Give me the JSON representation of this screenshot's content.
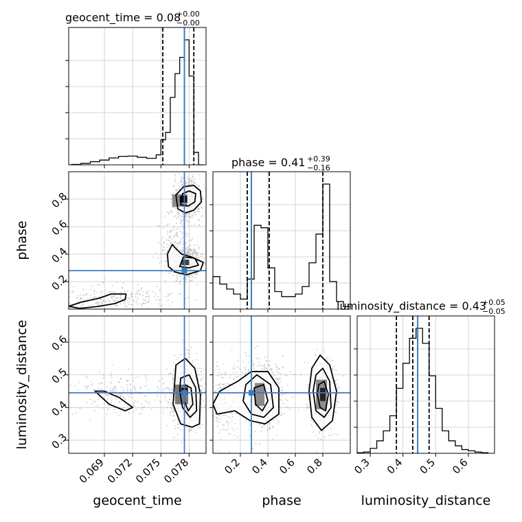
{
  "chart_data": {
    "type": "corner",
    "truth_color": "#3b7dbf",
    "parameters": [
      "geocent_time",
      "phase",
      "luminosity_distance"
    ],
    "titles": [
      {
        "param": "geocent_time",
        "label": "geocent_time = 0.08",
        "plus": "+0.00",
        "minus": "−0.00"
      },
      {
        "param": "phase",
        "label": "phase = 0.41",
        "plus": "+0.39",
        "minus": "−0.16"
      },
      {
        "param": "luminosity_distance",
        "label": "luminosity_distance = 0.43",
        "plus": "+0.05",
        "minus": "−0.05"
      }
    ],
    "axes": {
      "geocent_time": {
        "range": [
          0.0652,
          0.0798
        ],
        "ticks": [
          0.069,
          0.072,
          0.075,
          0.078
        ],
        "tick_labels": [
          "0.069",
          "0.072",
          "0.075",
          "0.078"
        ],
        "truth": 0.0775,
        "quantiles": [
          0.0752,
          0.0775,
          0.0785
        ]
      },
      "phase": {
        "range": [
          0.0,
          1.0
        ],
        "ticks": [
          0.2,
          0.4,
          0.6,
          0.8
        ],
        "tick_labels": [
          "0.2",
          "0.4",
          "0.6",
          "0.8"
        ],
        "truth": 0.28,
        "quantiles": [
          0.25,
          0.41,
          0.8
        ]
      },
      "luminosity_distance": {
        "range": [
          0.26,
          0.68
        ],
        "ticks": [
          0.3,
          0.4,
          0.5,
          0.6
        ],
        "tick_labels": [
          "0.3",
          "0.4",
          "0.5",
          "0.6"
        ],
        "truth": 0.445,
        "quantiles": [
          0.38,
          0.43,
          0.48
        ]
      }
    },
    "histograms": {
      "geocent_time": {
        "bins": [
          0.0655,
          0.0665,
          0.0675,
          0.0685,
          0.0695,
          0.0705,
          0.0715,
          0.0725,
          0.0735,
          0.0745,
          0.075,
          0.0755,
          0.076,
          0.0765,
          0.077,
          0.0775,
          0.078,
          0.0785,
          0.079,
          0.0795
        ],
        "counts": [
          0.3,
          1.2,
          2.5,
          3.8,
          5.5,
          6.8,
          7.0,
          6.0,
          5.2,
          8.0,
          20,
          26,
          54,
          73,
          86,
          100,
          71,
          10,
          0
        ]
      },
      "phase": {
        "bins": [
          0.0,
          0.05,
          0.1,
          0.15,
          0.2,
          0.25,
          0.3,
          0.35,
          0.4,
          0.45,
          0.5,
          0.55,
          0.6,
          0.65,
          0.7,
          0.75,
          0.8,
          0.85,
          0.9,
          0.95,
          1.0
        ],
        "counts": [
          26,
          20,
          16,
          12,
          8,
          24,
          67,
          65,
          33,
          14,
          10,
          10,
          12,
          18,
          37,
          60,
          100,
          22,
          6,
          2
        ]
      },
      "luminosity_distance": {
        "bins": [
          0.26,
          0.28,
          0.3,
          0.32,
          0.34,
          0.36,
          0.38,
          0.4,
          0.42,
          0.44,
          0.46,
          0.48,
          0.5,
          0.52,
          0.54,
          0.56,
          0.58,
          0.6,
          0.62,
          0.64,
          0.66
        ],
        "counts": [
          0.5,
          1.0,
          4.0,
          10,
          18,
          30,
          52,
          72,
          92,
          100,
          88,
          62,
          36,
          18,
          10,
          6,
          3,
          2,
          1,
          0.5
        ]
      }
    },
    "pairs": [
      {
        "x": "geocent_time",
        "y": "phase",
        "scatter_blobs": [
          {
            "cx": 0.0778,
            "cy": 0.8,
            "sx": 0.0007,
            "sy": 0.08,
            "n": 600
          },
          {
            "cx": 0.0778,
            "cy": 0.34,
            "sx": 0.0007,
            "sy": 0.06,
            "n": 500
          },
          {
            "cx": 0.07,
            "cy": 0.08,
            "sx": 0.003,
            "sy": 0.05,
            "n": 250
          },
          {
            "cx": 0.0762,
            "cy": 0.45,
            "sx": 0.0008,
            "sy": 0.12,
            "n": 150
          }
        ],
        "contours": [
          [
            [
              0.0768,
              0.73
            ],
            [
              0.0776,
              0.7
            ],
            [
              0.0785,
              0.72
            ],
            [
              0.0793,
              0.78
            ],
            [
              0.0792,
              0.86
            ],
            [
              0.0785,
              0.9
            ],
            [
              0.0774,
              0.89
            ],
            [
              0.0766,
              0.83
            ]
          ],
          [
            [
              0.0771,
              0.76
            ],
            [
              0.0779,
              0.75
            ],
            [
              0.0786,
              0.78
            ],
            [
              0.0787,
              0.84
            ],
            [
              0.078,
              0.86
            ],
            [
              0.0773,
              0.84
            ]
          ],
          [
            [
              0.0757,
              0.4
            ],
            [
              0.0762,
              0.47
            ],
            [
              0.0766,
              0.44
            ],
            [
              0.0772,
              0.4
            ],
            [
              0.0782,
              0.38
            ],
            [
              0.0795,
              0.34
            ],
            [
              0.0792,
              0.28
            ],
            [
              0.0777,
              0.25
            ],
            [
              0.0765,
              0.27
            ],
            [
              0.0758,
              0.31
            ]
          ],
          [
            [
              0.077,
              0.31
            ],
            [
              0.078,
              0.3
            ],
            [
              0.079,
              0.32
            ],
            [
              0.0786,
              0.37
            ],
            [
              0.0774,
              0.38
            ]
          ],
          [
            [
              0.0652,
              0.02
            ],
            [
              0.0665,
              0.05
            ],
            [
              0.0685,
              0.08
            ],
            [
              0.0697,
              0.11
            ],
            [
              0.0713,
              0.11
            ],
            [
              0.0712,
              0.07
            ],
            [
              0.0701,
              0.04
            ],
            [
              0.0684,
              0.02
            ],
            [
              0.0664,
              0.005
            ]
          ]
        ],
        "density": [
          {
            "x": 0.0774,
            "y": 0.8,
            "w": 0.0008,
            "h": 0.05,
            "shade": "#111111"
          },
          {
            "x": 0.077,
            "y": 0.79,
            "w": 0.0016,
            "h": 0.09,
            "shade": "#8c8c8c"
          },
          {
            "x": 0.0776,
            "y": 0.34,
            "w": 0.0008,
            "h": 0.04,
            "shade": "#444444"
          }
        ]
      },
      {
        "x": "geocent_time",
        "y": "luminosity_distance",
        "scatter_blobs": [
          {
            "cx": 0.0777,
            "cy": 0.44,
            "sx": 0.0009,
            "sy": 0.05,
            "n": 700
          },
          {
            "cx": 0.0705,
            "cy": 0.44,
            "sx": 0.0025,
            "sy": 0.035,
            "n": 200
          }
        ],
        "contours": [
          [
            [
              0.0766,
              0.53
            ],
            [
              0.0776,
              0.55
            ],
            [
              0.0786,
              0.52
            ],
            [
              0.0792,
              0.44
            ],
            [
              0.0791,
              0.35
            ],
            [
              0.0783,
              0.34
            ],
            [
              0.0771,
              0.35
            ],
            [
              0.0763,
              0.41
            ]
          ],
          [
            [
              0.0771,
              0.49
            ],
            [
              0.078,
              0.5
            ],
            [
              0.0787,
              0.46
            ],
            [
              0.0788,
              0.39
            ],
            [
              0.0781,
              0.37
            ],
            [
              0.0773,
              0.4
            ],
            [
              0.077,
              0.45
            ]
          ],
          [
            [
              0.0775,
              0.47
            ],
            [
              0.0782,
              0.46
            ],
            [
              0.0784,
              0.41
            ],
            [
              0.0779,
              0.39
            ],
            [
              0.0775,
              0.42
            ]
          ],
          [
            [
              0.068,
              0.45
            ],
            [
              0.0695,
              0.41
            ],
            [
              0.0712,
              0.39
            ],
            [
              0.072,
              0.4
            ],
            [
              0.0706,
              0.43
            ],
            [
              0.069,
              0.45
            ]
          ]
        ],
        "density": [
          {
            "x": 0.0775,
            "y": 0.45,
            "w": 0.0007,
            "h": 0.02,
            "shade": "#111111"
          },
          {
            "x": 0.0772,
            "y": 0.44,
            "w": 0.0014,
            "h": 0.06,
            "shade": "#7a7a7a"
          }
        ]
      },
      {
        "x": "phase",
        "y": "luminosity_distance",
        "scatter_blobs": [
          {
            "cx": 0.35,
            "cy": 0.44,
            "sx": 0.08,
            "sy": 0.05,
            "n": 700
          },
          {
            "cx": 0.8,
            "cy": 0.44,
            "sx": 0.05,
            "sy": 0.05,
            "n": 700
          },
          {
            "cx": 0.08,
            "cy": 0.42,
            "sx": 0.07,
            "sy": 0.05,
            "n": 250
          }
        ],
        "contours": [
          [
            [
              0.18,
              0.48
            ],
            [
              0.28,
              0.51
            ],
            [
              0.4,
              0.51
            ],
            [
              0.48,
              0.46
            ],
            [
              0.48,
              0.38
            ],
            [
              0.38,
              0.35
            ],
            [
              0.27,
              0.36
            ],
            [
              0.16,
              0.39
            ],
            [
              0.03,
              0.38
            ],
            [
              0.0,
              0.41
            ],
            [
              0.05,
              0.45
            ]
          ],
          [
            [
              0.24,
              0.47
            ],
            [
              0.32,
              0.5
            ],
            [
              0.42,
              0.47
            ],
            [
              0.44,
              0.4
            ],
            [
              0.37,
              0.37
            ],
            [
              0.28,
              0.38
            ],
            [
              0.22,
              0.42
            ]
          ],
          [
            [
              0.3,
              0.46
            ],
            [
              0.37,
              0.47
            ],
            [
              0.4,
              0.42
            ],
            [
              0.36,
              0.39
            ],
            [
              0.31,
              0.41
            ]
          ],
          [
            [
              0.72,
              0.52
            ],
            [
              0.78,
              0.56
            ],
            [
              0.85,
              0.53
            ],
            [
              0.9,
              0.45
            ],
            [
              0.87,
              0.36
            ],
            [
              0.79,
              0.33
            ],
            [
              0.72,
              0.37
            ],
            [
              0.7,
              0.45
            ]
          ],
          [
            [
              0.75,
              0.5
            ],
            [
              0.8,
              0.52
            ],
            [
              0.85,
              0.48
            ],
            [
              0.86,
              0.4
            ],
            [
              0.81,
              0.37
            ],
            [
              0.75,
              0.39
            ],
            [
              0.73,
              0.45
            ]
          ],
          [
            [
              0.77,
              0.47
            ],
            [
              0.81,
              0.48
            ],
            [
              0.84,
              0.44
            ],
            [
              0.82,
              0.39
            ],
            [
              0.78,
              0.4
            ],
            [
              0.76,
              0.44
            ]
          ]
        ],
        "density": [
          {
            "x": 0.8,
            "y": 0.44,
            "w": 0.04,
            "h": 0.04,
            "shade": "#222222"
          },
          {
            "x": 0.79,
            "y": 0.44,
            "w": 0.08,
            "h": 0.09,
            "shade": "#8c8c8c"
          },
          {
            "x": 0.34,
            "y": 0.44,
            "w": 0.07,
            "h": 0.07,
            "shade": "#8a8a8a"
          }
        ]
      }
    ],
    "x_labels": [
      "geocent_time",
      "phase",
      "luminosity_distance"
    ],
    "y_labels": [
      "phase",
      "luminosity_distance"
    ]
  }
}
